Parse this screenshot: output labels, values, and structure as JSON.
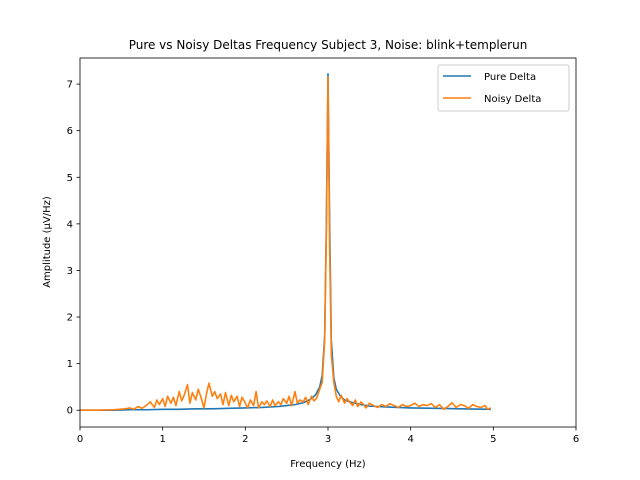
{
  "chart_data": {
    "type": "line",
    "title": "Pure vs Noisy Deltas Frequency Subject 3, Noise: blink+templerun",
    "xlabel": "Frequency (Hz)",
    "ylabel": "Amplitude (μV/Hz)",
    "xlim": [
      0,
      6
    ],
    "ylim": [
      -0.36,
      7.56
    ],
    "xticks": [
      0,
      1,
      2,
      3,
      4,
      5,
      6
    ],
    "xtick_labels": [
      "0",
      "1",
      "2",
      "3",
      "4",
      "5",
      "6"
    ],
    "yticks": [
      0,
      1,
      2,
      3,
      4,
      5,
      6,
      7
    ],
    "ytick_labels": [
      "0",
      "1",
      "2",
      "3",
      "4",
      "5",
      "6",
      "7"
    ],
    "grid": false,
    "legend_position": "top-right",
    "series": [
      {
        "name": "Pure Delta",
        "color": "#1f77b4",
        "x": [
          0,
          0.2,
          0.4,
          0.6,
          0.8,
          1.0,
          1.2,
          1.4,
          1.6,
          1.8,
          2.0,
          2.2,
          2.4,
          2.5,
          2.6,
          2.7,
          2.75,
          2.8,
          2.85,
          2.9,
          2.93,
          2.96,
          2.98,
          3.0,
          3.02,
          3.04,
          3.07,
          3.1,
          3.15,
          3.2,
          3.3,
          3.4,
          3.5,
          3.7,
          4.0,
          4.3,
          4.6,
          4.97
        ],
        "y": [
          0.0,
          0.0,
          0.0,
          0.01,
          0.01,
          0.02,
          0.02,
          0.03,
          0.03,
          0.04,
          0.05,
          0.06,
          0.08,
          0.1,
          0.12,
          0.16,
          0.2,
          0.25,
          0.33,
          0.5,
          0.75,
          1.6,
          4.0,
          7.22,
          4.0,
          1.5,
          0.7,
          0.45,
          0.3,
          0.22,
          0.16,
          0.12,
          0.09,
          0.07,
          0.05,
          0.04,
          0.03,
          0.02
        ]
      },
      {
        "name": "Noisy Delta",
        "color": "#ff7f0e",
        "x": [
          0,
          0.2,
          0.4,
          0.55,
          0.6,
          0.65,
          0.7,
          0.75,
          0.8,
          0.85,
          0.9,
          0.93,
          0.96,
          1.0,
          1.03,
          1.06,
          1.1,
          1.13,
          1.16,
          1.2,
          1.23,
          1.26,
          1.3,
          1.33,
          1.36,
          1.4,
          1.43,
          1.46,
          1.5,
          1.53,
          1.56,
          1.6,
          1.63,
          1.66,
          1.7,
          1.73,
          1.76,
          1.8,
          1.83,
          1.86,
          1.9,
          1.93,
          1.96,
          2.0,
          2.03,
          2.06,
          2.1,
          2.13,
          2.16,
          2.2,
          2.23,
          2.26,
          2.3,
          2.33,
          2.36,
          2.4,
          2.43,
          2.46,
          2.5,
          2.53,
          2.56,
          2.6,
          2.63,
          2.66,
          2.7,
          2.73,
          2.76,
          2.8,
          2.83,
          2.86,
          2.9,
          2.93,
          2.96,
          2.98,
          3.0,
          3.02,
          3.04,
          3.07,
          3.1,
          3.13,
          3.16,
          3.2,
          3.23,
          3.26,
          3.3,
          3.33,
          3.36,
          3.4,
          3.43,
          3.46,
          3.5,
          3.55,
          3.6,
          3.65,
          3.7,
          3.75,
          3.8,
          3.85,
          3.9,
          3.95,
          4.0,
          4.05,
          4.1,
          4.15,
          4.2,
          4.25,
          4.3,
          4.35,
          4.4,
          4.45,
          4.5,
          4.55,
          4.6,
          4.65,
          4.7,
          4.75,
          4.8,
          4.85,
          4.9,
          4.93,
          4.97
        ],
        "y": [
          0.0,
          0.0,
          0.01,
          0.03,
          0.05,
          0.02,
          0.08,
          0.04,
          0.1,
          0.18,
          0.06,
          0.22,
          0.12,
          0.25,
          0.08,
          0.3,
          0.15,
          0.28,
          0.1,
          0.4,
          0.2,
          0.32,
          0.55,
          0.15,
          0.38,
          0.22,
          0.45,
          0.3,
          0.05,
          0.35,
          0.58,
          0.3,
          0.4,
          0.25,
          0.35,
          0.12,
          0.38,
          0.1,
          0.32,
          0.18,
          0.3,
          0.08,
          0.28,
          0.15,
          0.05,
          0.22,
          0.1,
          0.4,
          0.05,
          0.18,
          0.12,
          0.2,
          0.08,
          0.22,
          0.1,
          0.18,
          0.12,
          0.25,
          0.15,
          0.3,
          0.1,
          0.4,
          0.15,
          0.22,
          0.18,
          0.28,
          0.12,
          0.3,
          0.2,
          0.25,
          0.45,
          0.6,
          1.5,
          3.8,
          7.15,
          3.5,
          1.2,
          0.6,
          0.3,
          0.18,
          0.32,
          0.15,
          0.25,
          0.18,
          0.1,
          0.22,
          0.08,
          0.18,
          0.12,
          0.05,
          0.15,
          0.1,
          0.06,
          0.12,
          0.08,
          0.14,
          0.1,
          0.06,
          0.12,
          0.08,
          0.1,
          0.15,
          0.08,
          0.12,
          0.1,
          0.14,
          0.06,
          0.12,
          0.02,
          0.08,
          0.16,
          0.06,
          0.12,
          0.1,
          0.04,
          0.12,
          0.08,
          0.06,
          0.1,
          0.02,
          0.05
        ]
      }
    ]
  }
}
